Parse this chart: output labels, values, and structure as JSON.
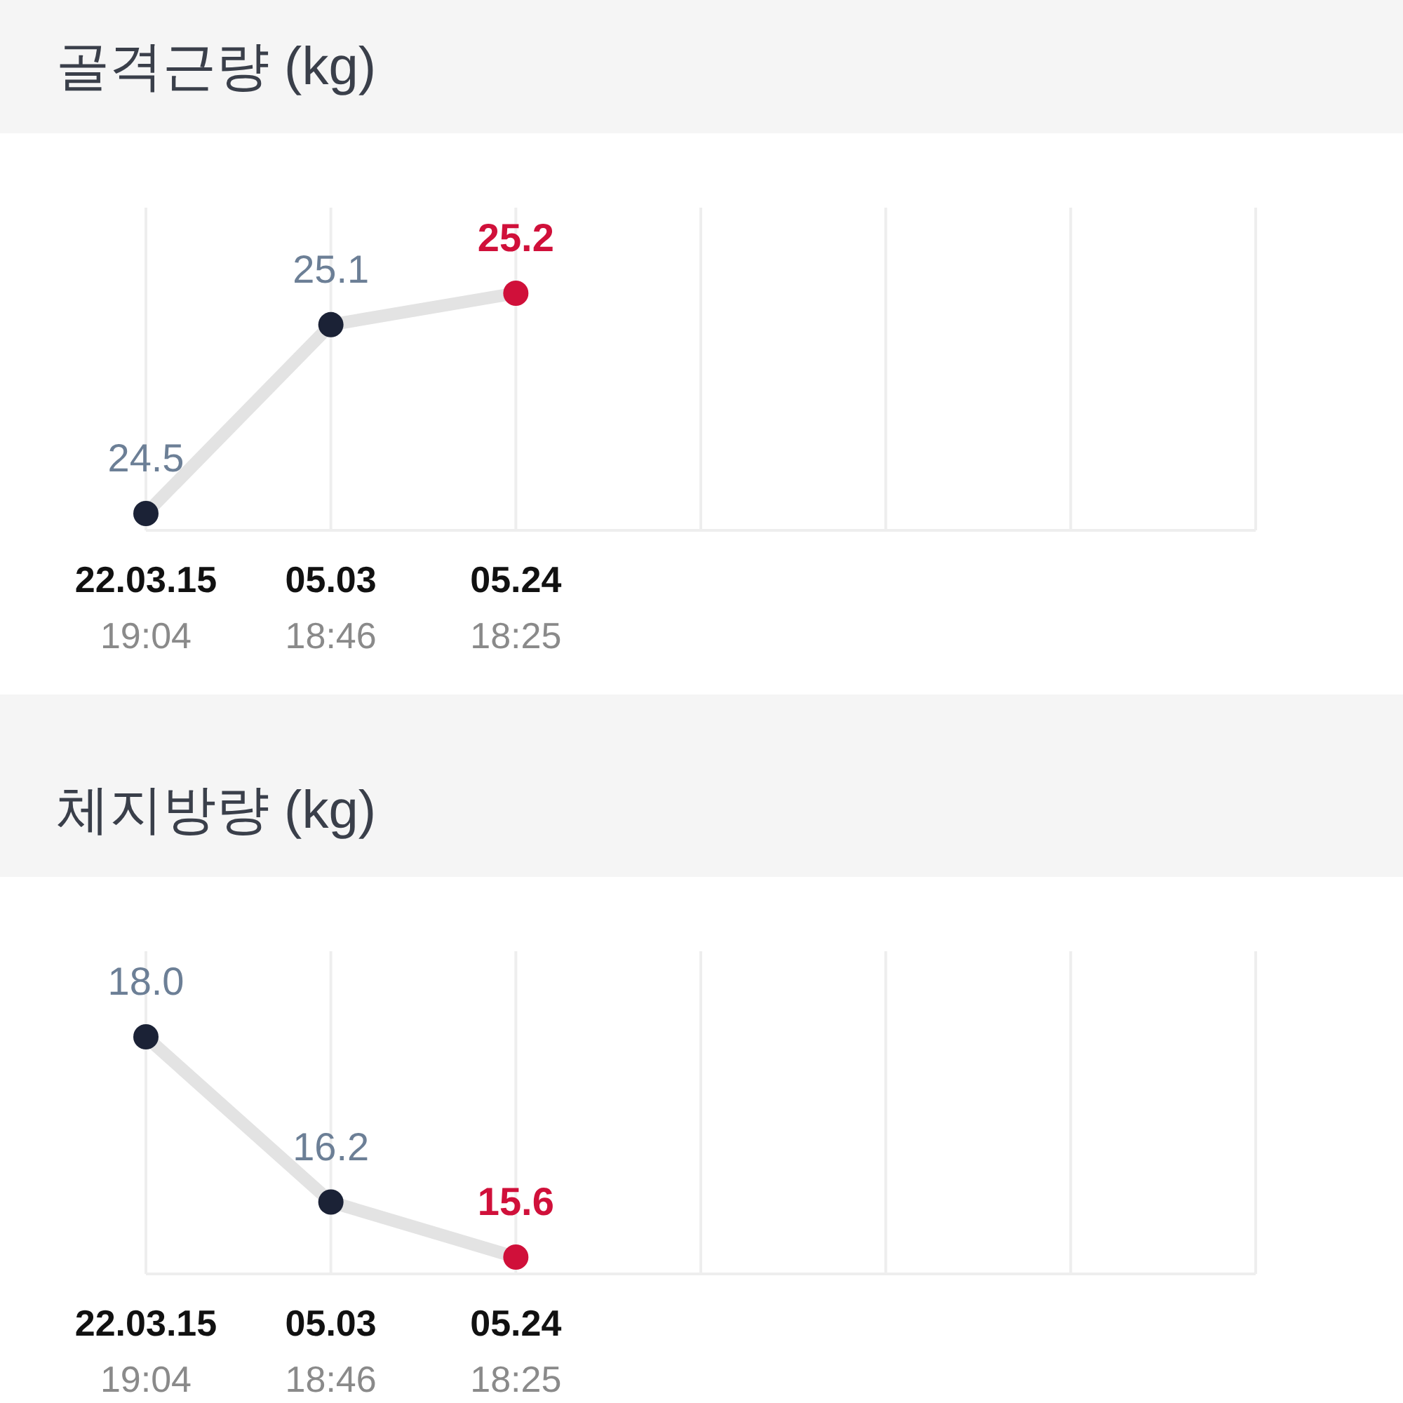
{
  "chart_data": [
    {
      "type": "line",
      "title": "골격근량 (kg)",
      "categories": [
        "22.03.15\n19:04",
        "05.03\n18:46",
        "05.24\n18:25",
        null,
        null,
        null,
        null
      ],
      "grid": "x",
      "marker": "circle",
      "series": [
        {
          "color": "#e3e3e3",
          "colors": [
            "#1b2236",
            "#1b2236",
            "#d0103a",
            null,
            null,
            null,
            null
          ],
          "values": [
            24.5,
            25.1,
            25.2,
            null,
            null,
            null,
            null
          ],
          "value_labels": [
            "24.5",
            "25.1",
            "25.2",
            null,
            null,
            null,
            null
          ]
        }
      ]
    },
    {
      "type": "line",
      "title": "체지방량 (kg)",
      "categories": [
        "22.03.15\n19:04",
        "05.03\n18:46",
        "05.24\n18:25",
        null,
        null,
        null,
        null
      ],
      "grid": "x",
      "marker": "circle",
      "series": [
        {
          "color": "#e3e3e3",
          "colors": [
            "#1b2236",
            "#1b2236",
            "#d0103a",
            null,
            null,
            null,
            null
          ],
          "values": [
            18.0,
            16.2,
            15.6,
            null,
            null,
            null,
            null
          ],
          "value_labels": [
            "18.0",
            "16.2",
            "15.6",
            null,
            null,
            null,
            null
          ]
        }
      ]
    }
  ]
}
